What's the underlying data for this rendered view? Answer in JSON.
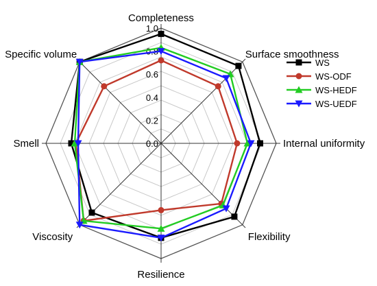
{
  "chart_data": {
    "type": "radar",
    "axes": [
      "Completeness",
      "Surface smoothness",
      "Internal uniformity",
      "Flexibility",
      "Resilience",
      "Viscosity",
      "Smell",
      "Specific volume"
    ],
    "ticks": [
      "0.0",
      "0.2",
      "0.4",
      "0.6",
      "0.8",
      "1.0"
    ],
    "rlim": [
      0,
      1.0
    ],
    "grid": true,
    "legend_position": "right",
    "series": [
      {
        "name": "WS",
        "color": "#000000",
        "marker": "square",
        "values": [
          0.95,
          0.95,
          0.86,
          0.9,
          0.82,
          0.85,
          0.78,
          1.0
        ]
      },
      {
        "name": "WS-ODF",
        "color": "#c0392b",
        "marker": "circle",
        "values": [
          0.72,
          0.7,
          0.66,
          0.74,
          0.58,
          0.95,
          0.74,
          0.7
        ]
      },
      {
        "name": "WS-HEDF",
        "color": "#22cc22",
        "marker": "triangle-up",
        "values": [
          0.83,
          0.85,
          0.75,
          0.76,
          0.74,
          0.95,
          0.75,
          1.0
        ]
      },
      {
        "name": "WS-UEDF",
        "color": "#1a1aff",
        "marker": "triangle-down",
        "values": [
          0.8,
          0.8,
          0.78,
          0.8,
          0.82,
          1.0,
          0.72,
          1.0
        ]
      }
    ]
  }
}
